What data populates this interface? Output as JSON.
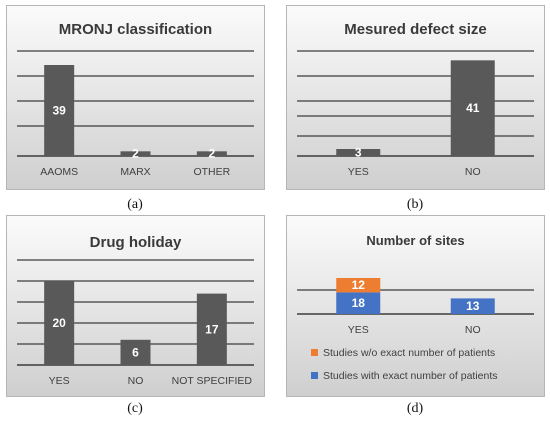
{
  "panels": [
    {
      "caption": "(a)",
      "chart_data": {
        "type": "bar",
        "title": "MRONJ classification",
        "categories": [
          "AAOMS",
          "MARX",
          "OTHER"
        ],
        "series": [
          {
            "values": [
              39,
              2,
              2
            ],
            "color": "#595959"
          }
        ],
        "ylim": [
          0,
          45
        ],
        "grid": true
      }
    },
    {
      "caption": "(b)",
      "chart_data": {
        "type": "bar",
        "title": "Mesured defect size",
        "categories": [
          "YES",
          "NO"
        ],
        "series": [
          {
            "values": [
              3,
              41
            ],
            "color": "#595959"
          }
        ],
        "ylim": [
          0,
          45
        ],
        "grid": true
      }
    },
    {
      "caption": "(c)",
      "chart_data": {
        "type": "bar",
        "title": "Drug holiday",
        "categories": [
          "YES",
          "NO",
          "NOT SPECIFIED"
        ],
        "series": [
          {
            "values": [
              20,
              6,
              17
            ],
            "color": "#595959"
          }
        ],
        "ylim": [
          0,
          25
        ],
        "grid": true
      }
    },
    {
      "caption": "(d)",
      "chart_data": {
        "type": "bar",
        "stacked": true,
        "title": "Number of sites",
        "categories": [
          "YES",
          "NO"
        ],
        "series": [
          {
            "name": "Studies with exact number of patients",
            "values": [
              18,
              13
            ],
            "color": "#4472c4"
          },
          {
            "name": "Studies w/o exact number of patients",
            "values": [
              12,
              0
            ],
            "color": "#ed7d31"
          }
        ],
        "ylim": [
          0,
          40
        ],
        "grid": true,
        "legend": "bottom"
      }
    }
  ]
}
